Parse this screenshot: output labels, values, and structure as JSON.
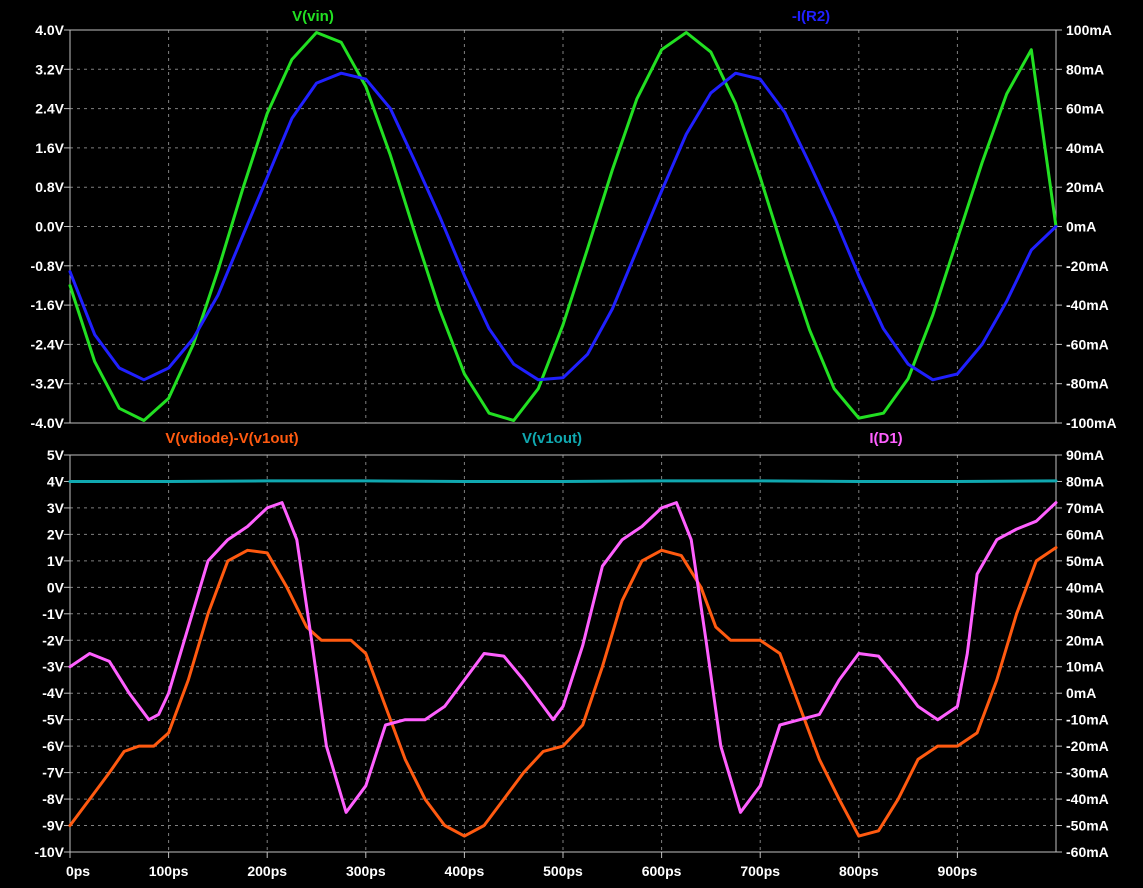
{
  "colors": {
    "background": "#000000",
    "pane_border": "#c0c0c0",
    "grid": "#808080",
    "axis_text": "#ffffff",
    "vin": "#22e022",
    "ir2": "#2020ff",
    "vdiode": "#ff5a10",
    "v1out": "#10a8b0",
    "id1": "#ff60ff"
  },
  "x_axis": {
    "tick_labels": [
      "0ps",
      "100ps",
      "200ps",
      "300ps",
      "400ps",
      "500ps",
      "600ps",
      "700ps",
      "800ps",
      "900ps"
    ],
    "range_ps": [
      0,
      1000
    ]
  },
  "chart_data": [
    {
      "type": "line",
      "pane": "top",
      "grid": true,
      "left_axis": {
        "range": [
          -4.0,
          4.0
        ],
        "tick_values": [
          4.0,
          3.2,
          2.4,
          1.6,
          0.8,
          0.0,
          -0.8,
          -1.6,
          -2.4,
          -3.2,
          -4.0
        ],
        "tick_labels": [
          "4.0V",
          "3.2V",
          "2.4V",
          "1.6V",
          "0.8V",
          "0.0V",
          "-0.8V",
          "-1.6V",
          "-2.4V",
          "-3.2V",
          "-4.0V"
        ]
      },
      "right_axis": {
        "range": [
          -100,
          100
        ],
        "tick_values": [
          100,
          80,
          60,
          40,
          20,
          0,
          -20,
          -40,
          -60,
          -80,
          -100
        ],
        "tick_labels": [
          "100mA",
          "80mA",
          "60mA",
          "40mA",
          "20mA",
          "0mA",
          "-20mA",
          "-40mA",
          "-60mA",
          "-80mA",
          "-100mA"
        ]
      },
      "series": [
        {
          "name": "V(vin)",
          "axis": "left",
          "color": "#22e022",
          "x": [
            0,
            25,
            50,
            75,
            100,
            125,
            150,
            175,
            200,
            225,
            250,
            275,
            300,
            325,
            350,
            375,
            400,
            425,
            450,
            475,
            500,
            525,
            550,
            575,
            600,
            625,
            650,
            675,
            700,
            725,
            750,
            775,
            800,
            825,
            850,
            875,
            900,
            925,
            950,
            975,
            1000
          ],
          "y": [
            -1.2,
            -2.75,
            -3.7,
            -3.95,
            -3.5,
            -2.4,
            -0.9,
            0.75,
            2.3,
            3.4,
            3.95,
            3.75,
            2.85,
            1.45,
            -0.15,
            -1.7,
            -3.0,
            -3.8,
            -3.95,
            -3.3,
            -2.0,
            -0.45,
            1.15,
            2.6,
            3.6,
            3.95,
            3.55,
            2.5,
            1.0,
            -0.6,
            -2.1,
            -3.3,
            -3.9,
            -3.8,
            -3.1,
            -1.8,
            -0.25,
            1.3,
            2.7,
            3.6,
            0.0
          ]
        },
        {
          "name": "-I(R2)",
          "axis": "right",
          "color": "#2020ff",
          "x": [
            0,
            25,
            50,
            75,
            100,
            125,
            150,
            175,
            200,
            225,
            250,
            275,
            300,
            325,
            350,
            375,
            400,
            425,
            450,
            475,
            500,
            525,
            550,
            575,
            600,
            625,
            650,
            675,
            700,
            725,
            750,
            775,
            800,
            825,
            850,
            875,
            900,
            925,
            950,
            975,
            1000
          ],
          "y": [
            -23,
            -55,
            -72,
            -78,
            -72,
            -57,
            -35,
            -5,
            25,
            55,
            73,
            78,
            75,
            60,
            33,
            5,
            -25,
            -52,
            -70,
            -78,
            -77,
            -65,
            -42,
            -12,
            18,
            47,
            68,
            78,
            75,
            58,
            32,
            5,
            -25,
            -52,
            -70,
            -78,
            -75,
            -60,
            -38,
            -12,
            0
          ]
        }
      ]
    },
    {
      "type": "line",
      "pane": "bottom",
      "grid": true,
      "left_axis": {
        "range": [
          -10,
          5
        ],
        "tick_values": [
          5,
          4,
          3,
          2,
          1,
          0,
          -1,
          -2,
          -3,
          -4,
          -5,
          -6,
          -7,
          -8,
          -9,
          -10
        ],
        "tick_labels": [
          "5V",
          "4V",
          "3V",
          "2V",
          "1V",
          "0V",
          "-1V",
          "-2V",
          "-3V",
          "-4V",
          "-5V",
          "-6V",
          "-7V",
          "-8V",
          "-9V",
          "-10V"
        ]
      },
      "right_axis": {
        "range": [
          -60,
          90
        ],
        "tick_values": [
          90,
          80,
          70,
          60,
          50,
          40,
          30,
          20,
          10,
          0,
          -10,
          -20,
          -30,
          -40,
          -50,
          -60
        ],
        "tick_labels": [
          "90mA",
          "80mA",
          "70mA",
          "60mA",
          "50mA",
          "40mA",
          "30mA",
          "20mA",
          "10mA",
          "0mA",
          "-10mA",
          "-20mA",
          "-30mA",
          "-40mA",
          "-50mA",
          "-60mA"
        ]
      },
      "series": [
        {
          "name": "V(vdiode)-V(v1out)",
          "axis": "left",
          "color": "#ff5a10",
          "x": [
            0,
            20,
            40,
            55,
            70,
            85,
            100,
            120,
            140,
            160,
            180,
            200,
            220,
            240,
            255,
            270,
            285,
            300,
            320,
            340,
            360,
            380,
            400,
            420,
            440,
            460,
            480,
            500,
            520,
            540,
            560,
            580,
            600,
            620,
            640,
            655,
            670,
            685,
            700,
            720,
            740,
            760,
            780,
            800,
            820,
            840,
            860,
            880,
            900,
            920,
            940,
            960,
            980,
            1000
          ],
          "y": [
            -9,
            -8,
            -7,
            -6.2,
            -6,
            -6,
            -5.5,
            -3.5,
            -1,
            1,
            1.4,
            1.3,
            0,
            -1.5,
            -2,
            -2,
            -2,
            -2.5,
            -4.5,
            -6.5,
            -8,
            -9,
            -9.4,
            -9,
            -8,
            -7,
            -6.2,
            -6,
            -5.2,
            -3,
            -0.5,
            1,
            1.4,
            1.2,
            0,
            -1.5,
            -2,
            -2,
            -2,
            -2.5,
            -4.5,
            -6.5,
            -8,
            -9.4,
            -9.2,
            -8,
            -6.5,
            -6,
            -6,
            -5.5,
            -3.5,
            -1,
            1,
            1.5
          ]
        },
        {
          "name": "V(v1out)",
          "axis": "left",
          "color": "#10a8b0",
          "x": [
            0,
            100,
            200,
            300,
            400,
            500,
            600,
            700,
            800,
            900,
            1000
          ],
          "y": [
            4.0,
            4.0,
            4.02,
            4.02,
            4.0,
            4.0,
            4.02,
            4.02,
            4.0,
            4.0,
            4.02
          ]
        },
        {
          "name": "I(D1)",
          "axis": "right",
          "color": "#ff60ff",
          "x": [
            0,
            20,
            40,
            60,
            80,
            90,
            100,
            120,
            140,
            160,
            180,
            200,
            215,
            230,
            245,
            260,
            280,
            300,
            320,
            340,
            360,
            380,
            400,
            420,
            440,
            460,
            480,
            490,
            500,
            520,
            540,
            560,
            580,
            600,
            615,
            630,
            645,
            660,
            680,
            700,
            720,
            740,
            760,
            780,
            800,
            820,
            840,
            860,
            880,
            900,
            910,
            920,
            940,
            960,
            980,
            1000
          ],
          "y": [
            10,
            15,
            12,
            0,
            -10,
            -8,
            0,
            25,
            50,
            58,
            63,
            70,
            72,
            58,
            20,
            -20,
            -45,
            -35,
            -12,
            -10,
            -10,
            -5,
            5,
            15,
            14,
            5,
            -5,
            -10,
            -5,
            18,
            48,
            58,
            63,
            70,
            72,
            58,
            20,
            -20,
            -45,
            -35,
            -12,
            -10,
            -8,
            5,
            15,
            14,
            5,
            -5,
            -10,
            -5,
            15,
            45,
            58,
            62,
            65,
            72
          ]
        }
      ]
    }
  ],
  "trace_labels": {
    "vin": "V(vin)",
    "ir2": "-I(R2)",
    "vdiode": "V(vdiode)-V(v1out)",
    "v1out": "V(v1out)",
    "id1": "I(D1)"
  }
}
